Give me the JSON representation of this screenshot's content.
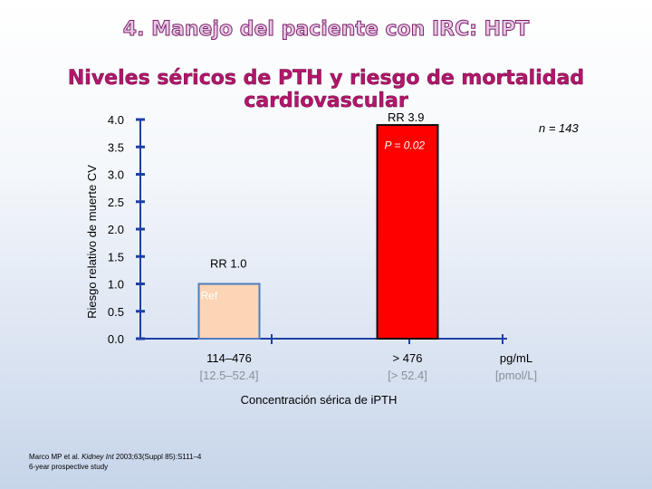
{
  "slide": {
    "title": "4. Manejo del paciente con IRC: HPT",
    "subtitle": "Niveles séricos de PTH y riesgo de mortalidad cardiovascular",
    "citation_authors": "Marco MP et al. ",
    "citation_journal": "Kidney Int",
    "citation_ref": " 2003;63(Suppl 85):S111–4",
    "citation_study": "6-year prospective study"
  },
  "colors": {
    "ref_bar": "#fbd5b5",
    "ref_bar_border": "#4f7dbf",
    "high_bar": "#ff0000",
    "high_bar_border": "#0f0f0f",
    "axis": "#1f3fa8"
  },
  "chart_data": {
    "type": "bar",
    "ylabel": "Riesgo relativo de  muerte CV",
    "ylim": [
      0,
      4.0
    ],
    "yticks": [
      "0.0",
      "0.5",
      "1.0",
      "1.5",
      "2.0",
      "2.5",
      "3.0",
      "3.5",
      "4.0"
    ],
    "xlabel": "Concentración sérica de iPTH",
    "unit_label": "pg/mL",
    "unit_label_alt": "[pmol/L]",
    "n_label": "n = 143",
    "categories": [
      "114–476",
      "> 476"
    ],
    "categories_alt": [
      "[12.5–52.4]",
      "[> 52.4]"
    ],
    "values": [
      1.0,
      3.9
    ],
    "bar_labels": [
      "RR 1.0",
      "RR 3.9"
    ],
    "ref_label": "Ref",
    "p_label": "P = 0.02"
  }
}
